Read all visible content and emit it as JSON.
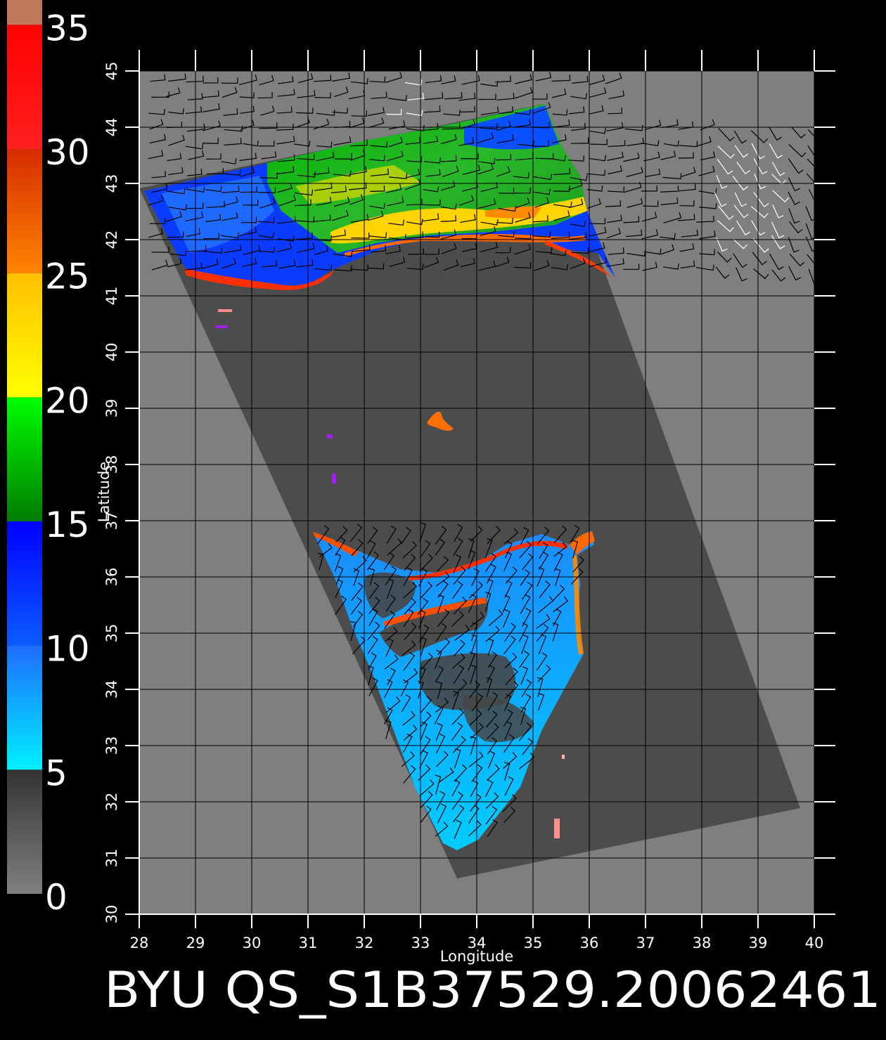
{
  "title": "BYU QS_S1B37529.20062461",
  "axes": {
    "xlabel": "Longitude",
    "ylabel": "Latitude",
    "lon_ticks": [
      "28",
      "29",
      "30",
      "31",
      "32",
      "33",
      "34",
      "35",
      "36",
      "37",
      "38",
      "39",
      "40"
    ],
    "lat_ticks": [
      "30",
      "31",
      "32",
      "33",
      "34",
      "35",
      "36",
      "37",
      "38",
      "39",
      "40",
      "41",
      "42",
      "43",
      "44",
      "45"
    ],
    "lon_range": [
      28,
      40
    ],
    "lat_range": [
      30,
      45
    ]
  },
  "colorbar": {
    "labels": [
      "0",
      "5",
      "10",
      "15",
      "20",
      "25",
      "30",
      "35"
    ],
    "segments": [
      {
        "from": 0,
        "to": 5,
        "top": "#333333",
        "bottom": "#808080"
      },
      {
        "from": 5,
        "to": 10,
        "top": "#1e6dff",
        "bottom": "#00f0ff"
      },
      {
        "from": 10,
        "to": 15,
        "top": "#0000ff",
        "bottom": "#0a5cff"
      },
      {
        "from": 15,
        "to": 20,
        "top": "#00ff00",
        "bottom": "#007a00"
      },
      {
        "from": 20,
        "to": 25,
        "top": "#ffbf00",
        "bottom": "#ffff00"
      },
      {
        "from": 25,
        "to": 30,
        "top": "#d42c00",
        "bottom": "#ff8400"
      },
      {
        "from": 30,
        "to": 35,
        "top": "#ff0000",
        "bottom": "#ff2020"
      },
      {
        "from": 35,
        "to": 36,
        "top": "#c0785a",
        "bottom": "#c0785a"
      }
    ]
  },
  "colors": {
    "background": "#000000",
    "plot_background": "#7f7f7f",
    "swath": "#4c4c4c",
    "grid": "#000000",
    "ticks": "#ffffff"
  }
}
